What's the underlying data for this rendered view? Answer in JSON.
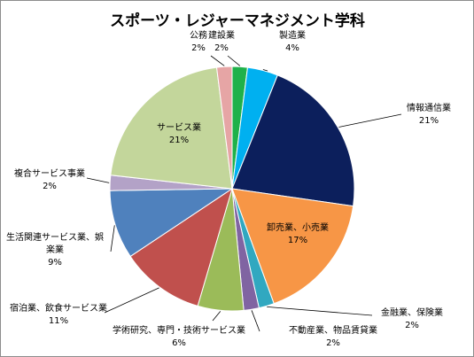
{
  "chart_data": {
    "type": "pie",
    "title": "スポーツ・レジャーマネジメント学科",
    "legend": "none",
    "slices": [
      {
        "name": "建設業",
        "value": 2,
        "label": "2%",
        "color": "#1fb14a"
      },
      {
        "name": "製造業",
        "value": 4,
        "label": "4%",
        "color": "#00b0f0"
      },
      {
        "name": "情報通信業",
        "value": 21,
        "label": "21%",
        "color": "#0c1f5c"
      },
      {
        "name": "卸売業、小売業",
        "value": 17,
        "label": "17%",
        "color": "#f79646"
      },
      {
        "name": "金融業、保険業",
        "value": 2,
        "label": "2%",
        "color": "#31a8c0"
      },
      {
        "name": "不動産業、物品賃貸業",
        "value": 2,
        "label": "2%",
        "color": "#8064a2"
      },
      {
        "name": "学術研究、専門・技術サービス業",
        "value": 6,
        "label": "6%",
        "color": "#9bbb59"
      },
      {
        "name": "宿泊業、飲食サービス業",
        "value": 11,
        "label": "11%",
        "color": "#c0504d"
      },
      {
        "name": "生活関連サービス業、娯楽業",
        "value": 9,
        "label": "9%",
        "color": "#4f81bd"
      },
      {
        "name": "複合サービス事業",
        "value": 2,
        "label": "2%",
        "color": "#b3a2c7"
      },
      {
        "name": "サービス業",
        "value": 21,
        "label": "21%",
        "color": "#c3d69b"
      },
      {
        "name": "公務",
        "value": 2,
        "label": "2%",
        "color": "#e6a5a5"
      }
    ]
  }
}
